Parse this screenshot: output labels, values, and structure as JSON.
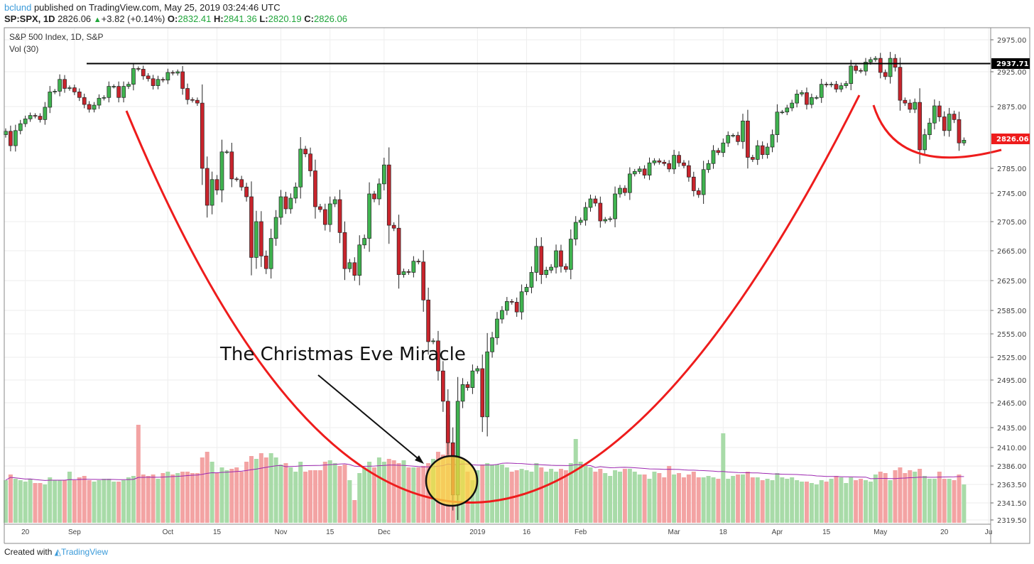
{
  "header": {
    "user": "bclund",
    "published": "published on TradingView.com, May 25, 2019 03:24:46 UTC",
    "symbol": "SP:SPX, 1D",
    "last": "2826.06",
    "change": "+3.82 (+0.14%)",
    "o_label": "O:",
    "o": "2832.41",
    "h_label": "H:",
    "h": "2841.36",
    "l_label": "L:",
    "l": "2820.19",
    "c_label": "C:",
    "c": "2826.06"
  },
  "legend": {
    "title": "S&P 500 Index, 1D, S&P",
    "volume": "Vol (30)"
  },
  "footer": {
    "created": "Created with",
    "brand": "TradingView"
  },
  "colors": {
    "up": "#3fb34f",
    "down": "#c8242c",
    "vol_up": "#a8dba8",
    "vol_down": "#f3a3a3",
    "vol_ma": "#9c27b0",
    "curve": "#ee1c1c",
    "highlight": "#f7d943"
  },
  "chart_data": {
    "type": "candlestick",
    "title": "S&P 500 Index, 1D, S&P",
    "y_ticks": [
      "2975.00",
      "2925.00",
      "2875.00",
      "2785.00",
      "2745.00",
      "2705.00",
      "2665.00",
      "2625.00",
      "2585.00",
      "2555.00",
      "2525.00",
      "2495.00",
      "2465.00",
      "2435.00",
      "2410.00",
      "2386.00",
      "2363.50",
      "2341.50",
      "2319.50"
    ],
    "x_ticks": [
      {
        "label": "20",
        "bar": 4
      },
      {
        "label": "Sep",
        "bar": 14
      },
      {
        "label": "Oct",
        "bar": 33
      },
      {
        "label": "15",
        "bar": 43
      },
      {
        "label": "Nov",
        "bar": 56
      },
      {
        "label": "15",
        "bar": 66
      },
      {
        "label": "Dec",
        "bar": 77
      },
      {
        "label": "2019",
        "bar": 96
      },
      {
        "label": "16",
        "bar": 106
      },
      {
        "label": "Feb",
        "bar": 117
      },
      {
        "label": "Mar",
        "bar": 136
      },
      {
        "label": "18",
        "bar": 146
      },
      {
        "label": "Apr",
        "bar": 157
      },
      {
        "label": "15",
        "bar": 167
      },
      {
        "label": "May",
        "bar": 178
      },
      {
        "label": "20",
        "bar": 191
      },
      {
        "label": "Ju",
        "bar": 200
      }
    ],
    "resistance": {
      "value": 2937.71,
      "label": "2937.71"
    },
    "last_price": {
      "value": 2826.06,
      "label": "2826.06"
    },
    "annotation": "The Christmas Eve Miracle",
    "closes": [
      2839,
      2818,
      2840,
      2850,
      2857,
      2862,
      2861,
      2856,
      2874,
      2896,
      2897,
      2914,
      2901,
      2902,
      2896,
      2888,
      2878,
      2871,
      2877,
      2887,
      2888,
      2904,
      2904,
      2888,
      2904,
      2907,
      2930,
      2929,
      2919,
      2915,
      2905,
      2914,
      2913,
      2924,
      2923,
      2925,
      2901,
      2885,
      2884,
      2880,
      2785,
      2728,
      2767,
      2750,
      2809,
      2809,
      2768,
      2767,
      2755,
      2740,
      2656,
      2705,
      2658,
      2641,
      2682,
      2711,
      2740,
      2723,
      2738,
      2755,
      2813,
      2806,
      2781,
      2726,
      2722,
      2701,
      2730,
      2736,
      2690,
      2641,
      2649,
      2632,
      2673,
      2682,
      2744,
      2737,
      2760,
      2790,
      2700,
      2696,
      2633,
      2637,
      2636,
      2651,
      2650,
      2599,
      2545,
      2546,
      2507,
      2467,
      2416,
      2351,
      2467,
      2489,
      2485,
      2507,
      2510,
      2448,
      2532,
      2550,
      2574,
      2585,
      2597,
      2596,
      2583,
      2610,
      2616,
      2636,
      2671,
      2633,
      2639,
      2643,
      2665,
      2644,
      2640,
      2681,
      2704,
      2707,
      2725,
      2737,
      2731,
      2706,
      2708,
      2709,
      2744,
      2753,
      2746,
      2776,
      2780,
      2784,
      2774,
      2793,
      2796,
      2794,
      2792,
      2784,
      2804,
      2793,
      2789,
      2771,
      2749,
      2743,
      2783,
      2792,
      2811,
      2808,
      2822,
      2833,
      2833,
      2824,
      2854,
      2801,
      2798,
      2818,
      2805,
      2816,
      2834,
      2867,
      2867,
      2873,
      2880,
      2893,
      2895,
      2878,
      2888,
      2888,
      2907,
      2906,
      2907,
      2900,
      2905,
      2908,
      2934,
      2927,
      2926,
      2940,
      2944,
      2946,
      2924,
      2918,
      2946,
      2932,
      2884,
      2880,
      2871,
      2881,
      2812,
      2834,
      2851,
      2876,
      2860,
      2840,
      2864,
      2856,
      2822,
      2826
    ],
    "volumes_billions": [
      3.0,
      3.4,
      3.1,
      3.0,
      2.9,
      3.1,
      2.8,
      2.8,
      2.7,
      3.2,
      3.0,
      3.0,
      3.0,
      3.6,
      3.0,
      3.2,
      3.3,
      3.0,
      2.9,
      3.0,
      3.1,
      3.1,
      2.9,
      2.9,
      3.0,
      3.2,
      3.3,
      6.9,
      3.4,
      3.3,
      3.4,
      3.1,
      3.5,
      3.6,
      3.4,
      3.5,
      3.6,
      3.6,
      3.5,
      3.5,
      4.6,
      5.0,
      4.3,
      3.5,
      3.9,
      3.7,
      3.8,
      3.9,
      3.6,
      4.3,
      4.7,
      4.5,
      4.9,
      4.6,
      4.9,
      4.6,
      4.1,
      4.2,
      3.9,
      3.6,
      4.3,
      3.6,
      3.7,
      3.7,
      3.7,
      4.3,
      4.4,
      4.2,
      4.0,
      4.1,
      3.0,
      1.6,
      3.5,
      3.9,
      4.3,
      3.9,
      4.6,
      4.3,
      4.5,
      4.4,
      4.2,
      4.4,
      3.9,
      3.9,
      3.9,
      4.0,
      4.2,
      4.5,
      5.0,
      4.8,
      7.6,
      2.0,
      4.6,
      4.4,
      3.6,
      3.0,
      3.7,
      4.1,
      4.2,
      4.1,
      4.1,
      4.1,
      3.9,
      3.6,
      3.7,
      3.8,
      3.7,
      3.6,
      4.2,
      3.9,
      3.6,
      3.8,
      3.6,
      3.8,
      3.7,
      4.2,
      5.9,
      4.3,
      4.0,
      3.9,
      3.6,
      3.8,
      3.5,
      3.3,
      3.7,
      3.6,
      3.8,
      3.8,
      3.6,
      3.4,
      3.4,
      3.1,
      3.6,
      3.5,
      3.2,
      4.0,
      3.4,
      3.5,
      3.2,
      3.4,
      3.6,
      3.2,
      3.2,
      3.3,
      3.2,
      3.1,
      6.3,
      3.1,
      3.3,
      3.4,
      3.4,
      3.6,
      3.2,
      3.2,
      3.0,
      3.1,
      3.0,
      3.5,
      3.2,
      3.1,
      3.2,
      3.0,
      2.9,
      2.9,
      2.8,
      2.7,
      3.0,
      2.9,
      3.1,
      3.3,
      3.2,
      2.8,
      3.2,
      3.0,
      3.1,
      3.0,
      2.9,
      3.4,
      3.6,
      3.5,
      3.0,
      3.7,
      3.9,
      3.5,
      3.7,
      3.6,
      3.8,
      3.3,
      3.1,
      3.1,
      3.6,
      3.1,
      3.1,
      3.0,
      3.4,
      2.7
    ],
    "volume_ma_period": 30
  }
}
